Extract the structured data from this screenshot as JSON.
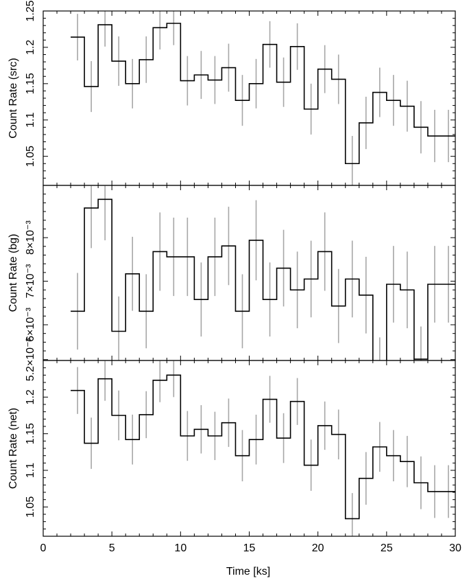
{
  "chart_data": [
    {
      "type": "line",
      "panel": "src",
      "xlabel": "",
      "ylabel": "Count Rate (src)",
      "ylim": [
        1.01,
        1.25
      ],
      "xlim": [
        0,
        30
      ],
      "yticks": [
        1.05,
        1.1,
        1.15,
        1.2,
        1.25
      ],
      "ytick_labels": [
        "1.05",
        "1.1",
        "1.15",
        "1.2",
        "1.25"
      ],
      "series": [
        {
          "x": [
            2.5,
            3.5,
            4.5,
            5.5,
            6.5,
            7.5,
            8.5,
            9.5,
            10.5,
            11.5,
            12.5,
            13.5,
            14.5,
            15.5,
            16.5,
            17.5,
            18.5,
            19.5,
            20.5,
            21.5,
            22.5,
            23.5,
            24.5,
            25.5,
            26.5,
            27.5,
            28.5,
            29.5
          ],
          "y": [
            1.214,
            1.146,
            1.231,
            1.181,
            1.15,
            1.183,
            1.227,
            1.233,
            1.154,
            1.162,
            1.155,
            1.172,
            1.127,
            1.15,
            1.204,
            1.152,
            1.201,
            1.115,
            1.17,
            1.156,
            1.04,
            1.096,
            1.138,
            1.127,
            1.119,
            1.09,
            1.078,
            1.078
          ],
          "err": [
            0.032,
            0.035,
            0.03,
            0.034,
            0.034,
            0.032,
            0.03,
            0.03,
            0.034,
            0.033,
            0.033,
            0.033,
            0.035,
            0.034,
            0.032,
            0.034,
            0.032,
            0.035,
            0.033,
            0.034,
            0.038,
            0.036,
            0.034,
            0.035,
            0.035,
            0.036,
            0.036,
            0.036
          ]
        }
      ]
    },
    {
      "type": "line",
      "panel": "bg",
      "xlabel": "",
      "ylabel": "Count Rate (bg)",
      "ylim": [
        0.00518,
        0.0092
      ],
      "xlim": [
        0,
        30
      ],
      "yticks": [
        0.0052,
        0.006,
        0.007,
        0.008
      ],
      "ytick_labels": [
        "5.2×10⁻³",
        "6×10⁻³",
        "7×10⁻³",
        "8×10⁻³"
      ],
      "series": [
        {
          "x": [
            2.5,
            3.5,
            4.5,
            5.5,
            6.5,
            7.5,
            8.5,
            9.5,
            10.5,
            11.5,
            12.5,
            13.5,
            14.5,
            15.5,
            16.5,
            17.5,
            18.5,
            19.5,
            20.5,
            21.5,
            22.5,
            23.5,
            24.5,
            25.5,
            26.5,
            27.5,
            28.5,
            29.5
          ],
          "y": [
            0.00631,
            0.00868,
            0.00888,
            0.00585,
            0.00717,
            0.00631,
            0.00768,
            0.00756,
            0.00756,
            0.00658,
            0.00756,
            0.00781,
            0.00631,
            0.00794,
            0.00658,
            0.0073,
            0.0068,
            0.00705,
            0.00768,
            0.00643,
            0.00705,
            0.00668,
            0.00496,
            0.00693,
            0.0068,
            0.00521,
            0.00693,
            0.00693
          ],
          "err": [
            0.00088,
            0.00092,
            0.00094,
            0.0008,
            0.00085,
            0.00085,
            0.0009,
            0.0009,
            0.0009,
            0.00085,
            0.0009,
            0.0009,
            0.00085,
            0.00092,
            0.00085,
            0.00088,
            0.00088,
            0.00088,
            0.0009,
            0.00085,
            0.00088,
            0.00088,
            0.00075,
            0.00088,
            0.00088,
            0.00075,
            0.00088,
            0.00088
          ]
        }
      ]
    },
    {
      "type": "line",
      "panel": "net",
      "xlabel": "Time [ks]",
      "ylabel": "Count Rate (net)",
      "ylim": [
        1.01,
        1.25
      ],
      "xlim": [
        0,
        30
      ],
      "xticks": [
        0,
        5,
        10,
        15,
        20,
        25,
        30
      ],
      "xtick_labels": [
        "0",
        "5",
        "10",
        "15",
        "20",
        "25",
        "30"
      ],
      "yticks": [
        1.05,
        1.1,
        1.15,
        1.2
      ],
      "ytick_labels": [
        "1.05",
        "1.1",
        "1.15",
        "1.2"
      ],
      "series": [
        {
          "x": [
            2.5,
            3.5,
            4.5,
            5.5,
            6.5,
            7.5,
            8.5,
            9.5,
            10.5,
            11.5,
            12.5,
            13.5,
            14.5,
            15.5,
            16.5,
            17.5,
            18.5,
            19.5,
            20.5,
            21.5,
            22.5,
            23.5,
            24.5,
            25.5,
            26.5,
            27.5,
            28.5,
            29.5
          ],
          "y": [
            1.209,
            1.137,
            1.225,
            1.175,
            1.142,
            1.176,
            1.223,
            1.23,
            1.147,
            1.156,
            1.147,
            1.165,
            1.12,
            1.142,
            1.197,
            1.144,
            1.194,
            1.107,
            1.161,
            1.149,
            1.034,
            1.089,
            1.132,
            1.12,
            1.112,
            1.083,
            1.071,
            1.071
          ],
          "err": [
            0.032,
            0.035,
            0.03,
            0.034,
            0.034,
            0.032,
            0.03,
            0.03,
            0.034,
            0.033,
            0.033,
            0.033,
            0.035,
            0.034,
            0.032,
            0.034,
            0.032,
            0.035,
            0.033,
            0.034,
            0.035,
            0.036,
            0.034,
            0.035,
            0.035,
            0.036,
            0.036,
            0.036
          ]
        }
      ]
    }
  ]
}
